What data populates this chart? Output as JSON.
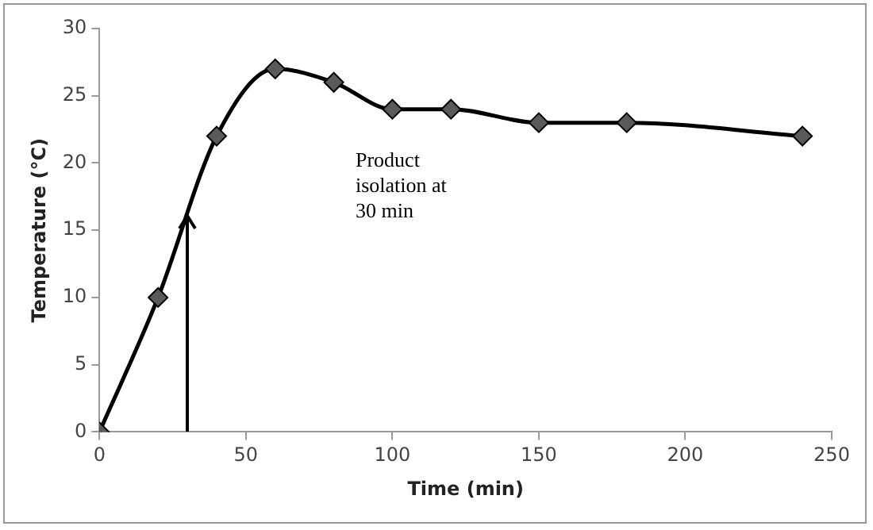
{
  "chart_data": {
    "type": "line",
    "xlabel": "Time (min)",
    "ylabel": "Temperature (°C)",
    "x": [
      0,
      20,
      40,
      60,
      80,
      100,
      120,
      150,
      180,
      240
    ],
    "series": [
      {
        "color": "#000000",
        "values": [
          0,
          10,
          22,
          27,
          26,
          24,
          24,
          23,
          23,
          22
        ]
      }
    ],
    "xlim": [
      0,
      250
    ],
    "xticks": [
      0,
      50,
      100,
      150,
      200,
      250
    ],
    "ylim": [
      0,
      30
    ],
    "yticks": [
      0,
      5,
      10,
      15,
      20,
      25,
      30
    ],
    "grid": false,
    "legend": false,
    "marker": "diamond",
    "line_style": "solid",
    "annotations": [
      "Product isolation at 30 min"
    ]
  }
}
